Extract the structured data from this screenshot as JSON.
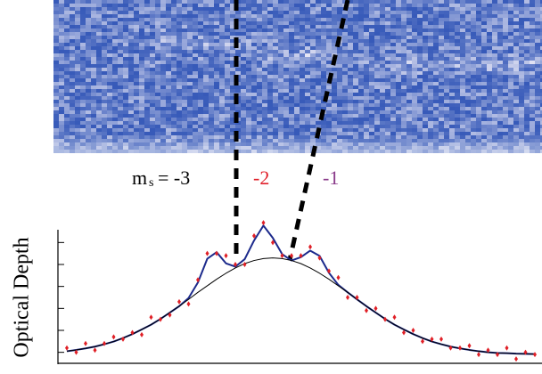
{
  "chart_data": {
    "type": "scatter",
    "ylabel": "Optical Depth",
    "annotations": {
      "symbol": "m",
      "subscript": "s",
      "first": "= -3",
      "second": "-2",
      "third": "-1",
      "second_color": "#e0202a",
      "third_color": "#8a3a8a"
    },
    "x": [
      0,
      2,
      4,
      6,
      8,
      10,
      12,
      14,
      16,
      18,
      20,
      22,
      24,
      26,
      28,
      30,
      32,
      34,
      36,
      38,
      40,
      42,
      44,
      46,
      48,
      50,
      52,
      54,
      56,
      58,
      60,
      62,
      64,
      66,
      68,
      70,
      72,
      74,
      76,
      78,
      80,
      82,
      84,
      86,
      88,
      90,
      92,
      94,
      96,
      98,
      100
    ],
    "xlim": [
      0,
      100
    ],
    "ylim": [
      0.05,
      0.65
    ],
    "yticks": [
      0.1,
      0.2,
      0.3,
      0.4,
      0.5,
      0.6
    ],
    "series": [
      {
        "style": "markers",
        "color": "#e01f26",
        "values": [
          0.12,
          0.1,
          0.14,
          0.11,
          0.14,
          0.17,
          0.16,
          0.19,
          0.18,
          0.26,
          0.25,
          0.27,
          0.33,
          0.32,
          0.43,
          0.55,
          0.55,
          0.54,
          0.5,
          0.5,
          0.63,
          0.69,
          0.6,
          0.54,
          0.54,
          0.54,
          0.58,
          0.53,
          0.47,
          0.44,
          0.35,
          0.35,
          0.29,
          0.3,
          0.25,
          0.26,
          0.19,
          0.2,
          0.15,
          0.16,
          0.16,
          0.12,
          0.12,
          0.13,
          0.09,
          0.11,
          0.09,
          0.12,
          0.07,
          0.1,
          0.09
        ]
      },
      {
        "style": "line",
        "color": "#1c2a8c",
        "width": 2,
        "values": [
          0.105,
          0.111,
          0.118,
          0.126,
          0.137,
          0.149,
          0.165,
          0.183,
          0.204,
          0.226,
          0.252,
          0.281,
          0.31,
          0.347,
          0.418,
          0.526,
          0.556,
          0.505,
          0.49,
          0.524,
          0.609,
          0.677,
          0.621,
          0.547,
          0.518,
          0.533,
          0.563,
          0.539,
          0.462,
          0.407,
          0.373,
          0.341,
          0.31,
          0.281,
          0.252,
          0.226,
          0.204,
          0.183,
          0.165,
          0.149,
          0.137,
          0.126,
          0.118,
          0.111,
          0.105,
          0.1,
          0.097,
          0.096,
          0.094,
          0.093,
          0.092
        ]
      },
      {
        "style": "line",
        "color": "#000000",
        "width": 1,
        "values": [
          0.105,
          0.111,
          0.118,
          0.126,
          0.137,
          0.149,
          0.165,
          0.183,
          0.204,
          0.226,
          0.252,
          0.281,
          0.31,
          0.341,
          0.373,
          0.403,
          0.433,
          0.46,
          0.484,
          0.504,
          0.518,
          0.527,
          0.53,
          0.527,
          0.518,
          0.504,
          0.484,
          0.46,
          0.433,
          0.403,
          0.373,
          0.341,
          0.31,
          0.281,
          0.252,
          0.226,
          0.204,
          0.183,
          0.165,
          0.149,
          0.137,
          0.126,
          0.118,
          0.111,
          0.105,
          0.1,
          0.097,
          0.096,
          0.094,
          0.093,
          0.092
        ]
      }
    ]
  }
}
